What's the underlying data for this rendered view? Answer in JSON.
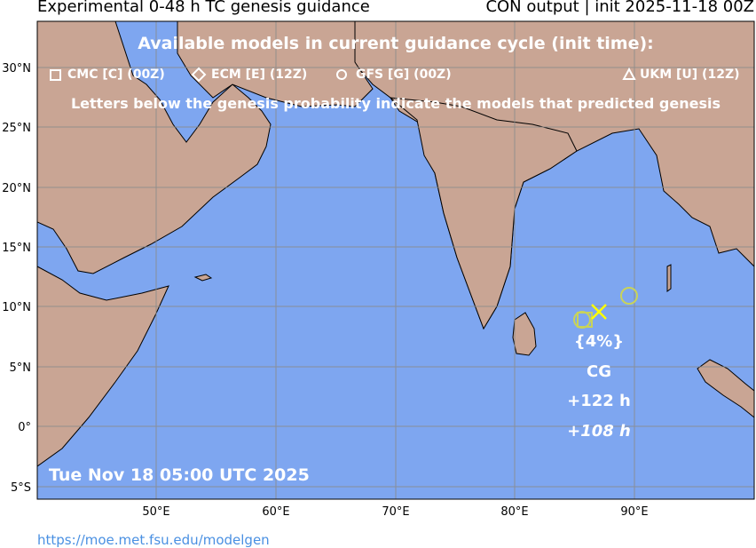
{
  "header": {
    "title_left": "Experimental 0-48 h TC genesis guidance",
    "title_right": "CON output | init 2025-11-18 00Z"
  },
  "legend": {
    "heading": "Available models in current guidance cycle (init time):",
    "models": [
      {
        "label": "CMC [C] (00Z)",
        "symbol": "square"
      },
      {
        "label": "ECM [E] (12Z)",
        "symbol": "diamond"
      },
      {
        "label": "GFS [G] (00Z)",
        "symbol": "circle"
      },
      {
        "label": "UKM [U] (12Z)",
        "symbol": "triangle"
      }
    ],
    "note": "Letters below the genesis probability indicate the models that predicted genesis"
  },
  "axes": {
    "lon_ticks": [
      "50°E",
      "60°E",
      "70°E",
      "80°E",
      "90°E"
    ],
    "lat_ticks": [
      "30°N",
      "25°N",
      "20°N",
      "15°N",
      "10°N",
      "5°N",
      "0°",
      "5°S"
    ]
  },
  "genesis": {
    "probability": "{4%}",
    "models": "CG",
    "lead_time_1": "+122 h",
    "lead_time_2": "+108 h",
    "lon": 87.2,
    "lat": 9.5,
    "marker_color": "#ffff00",
    "track_color": "#c8d35a"
  },
  "timestamp": "Tue Nov 18 05:00 UTC 2025",
  "footer": {
    "url": "https://moe.met.fsu.edu/modelgen"
  },
  "colors": {
    "ocean": "#7ea6f0",
    "land": "#c9a594",
    "grid": "#8a8a8a"
  }
}
